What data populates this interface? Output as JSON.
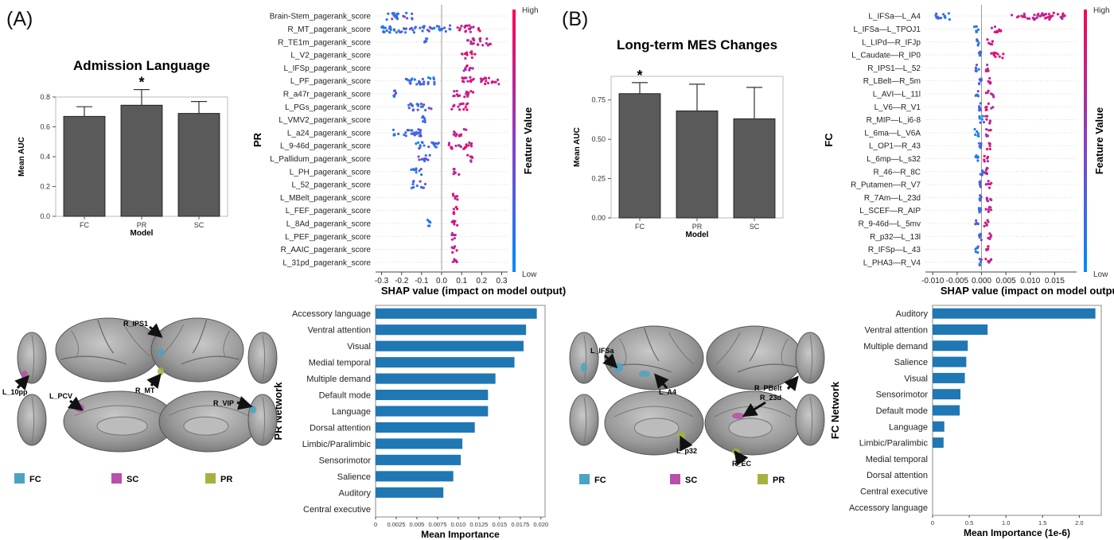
{
  "panels": [
    {
      "label": "(A)",
      "auc_chart": {
        "type": "bar",
        "title": "Admission Language",
        "ylabel": "Mean AUC",
        "xlabel": "Model",
        "categories": [
          "FC",
          "PR",
          "SC"
        ],
        "values": [
          0.67,
          0.745,
          0.69
        ],
        "errors": [
          0.065,
          0.105,
          0.08
        ],
        "significance": [
          "",
          "*",
          ""
        ],
        "ylim": [
          0,
          0.8
        ],
        "yticks": [
          "0.0",
          "0.2",
          "0.4",
          "0.6",
          "0.8"
        ],
        "bar_color": "#5a5a5a"
      },
      "shap_chart": {
        "type": "scatter",
        "ylabel": "PR",
        "xlabel": "SHAP value (impact on model output)",
        "colorbar": {
          "title": "Feature Value",
          "high": "High",
          "low": "Low"
        },
        "xlim": [
          -0.33,
          0.33
        ],
        "xticks": [
          "-0.3",
          "-0.2",
          "-0.1",
          "0.0",
          "0.1",
          "0.2",
          "0.3"
        ],
        "xtick_values": [
          -0.3,
          -0.2,
          -0.1,
          0,
          0.1,
          0.2,
          0.3
        ],
        "features": [
          {
            "name": "Brain-Stem_pagerank_score",
            "neg": [
              -0.28,
              -0.13
            ],
            "pos": []
          },
          {
            "name": "R_MT_pagerank_score",
            "neg": [
              -0.3,
              0.05
            ],
            "pos": [
              0.08,
              0.2
            ]
          },
          {
            "name": "R_TE1m_pagerank_score",
            "neg": [
              -0.09,
              -0.06
            ],
            "pos": [
              0.12,
              0.25
            ]
          },
          {
            "name": "L_V2_pagerank_score",
            "neg": [],
            "pos": [
              0.1,
              0.17
            ]
          },
          {
            "name": "L_IFSp_pagerank_score",
            "neg": [],
            "pos": [
              0.1,
              0.16
            ]
          },
          {
            "name": "L_PF_pagerank_score",
            "neg": [
              -0.2,
              -0.03
            ],
            "pos": [
              0.1,
              0.3
            ]
          },
          {
            "name": "R_a47r_pagerank_score",
            "neg": [
              -0.24,
              -0.22
            ],
            "pos": [
              0.05,
              0.16
            ]
          },
          {
            "name": "L_PGs_pagerank_score",
            "neg": [
              -0.17,
              -0.05
            ],
            "pos": [
              0.05,
              0.14
            ]
          },
          {
            "name": "L_VMV2_pagerank_score",
            "neg": [
              -0.1,
              -0.08
            ],
            "pos": []
          },
          {
            "name": "L_a24_pagerank_score",
            "neg": [
              -0.27,
              -0.1
            ],
            "pos": [
              0.06,
              0.13
            ]
          },
          {
            "name": "L_9-46d_pagerank_score",
            "neg": [
              -0.13,
              -0.01
            ],
            "pos": [
              0.03,
              0.16
            ]
          },
          {
            "name": "L_Pallidum_pagerank_score",
            "neg": [
              -0.12,
              -0.05
            ],
            "pos": [
              0.12,
              0.16
            ]
          },
          {
            "name": "L_PH_pagerank_score",
            "neg": [
              -0.16,
              -0.1
            ],
            "pos": [
              0.06,
              0.09
            ]
          },
          {
            "name": "L_52_pagerank_score",
            "neg": [
              -0.15,
              -0.08
            ],
            "pos": []
          },
          {
            "name": "L_MBelt_pagerank_score",
            "neg": [],
            "pos": [
              0.05,
              0.08
            ]
          },
          {
            "name": "L_FEF_pagerank_score",
            "neg": [],
            "pos": [
              0.05,
              0.08
            ]
          },
          {
            "name": "L_8Ad_pagerank_score",
            "neg": [
              -0.07,
              -0.05
            ],
            "pos": [
              0.05,
              0.08
            ]
          },
          {
            "name": "L_PEF_pagerank_score",
            "neg": [],
            "pos": [
              0.05,
              0.08
            ]
          },
          {
            "name": "R_AAIC_pagerank_score",
            "neg": [],
            "pos": [
              0.05,
              0.08
            ]
          },
          {
            "name": "L_31pd_pagerank_score",
            "neg": [],
            "pos": [
              0.05,
              0.08
            ]
          }
        ]
      },
      "importance_chart": {
        "type": "bar",
        "ylabel": "PR Network",
        "xlabel": "Mean Importance",
        "xlim": [
          0,
          0.0205
        ],
        "xticks": [
          "0",
          "0.0025",
          "0.005",
          "0.0075",
          "0.010",
          "0.0125",
          "0.015",
          "0.0175",
          "0.020"
        ],
        "xtick_values": [
          0,
          0.0025,
          0.005,
          0.0075,
          0.01,
          0.0125,
          0.015,
          0.0175,
          0.02
        ],
        "categories": [
          "Accessory language",
          "Ventral attention",
          "Visual",
          "Medial temporal",
          "Multiple demand",
          "Default mode",
          "Language",
          "Dorsal attention",
          "Limbic/Paralimbic",
          "Sensorimotor",
          "Salience",
          "Auditory",
          "Central executive"
        ],
        "values": [
          0.0195,
          0.0182,
          0.0179,
          0.0168,
          0.0145,
          0.0136,
          0.0136,
          0.012,
          0.0105,
          0.0103,
          0.0094,
          0.0082,
          0.0
        ],
        "bar_color": "#1f77b4"
      },
      "brain": {
        "labels": [
          "R_IPS1",
          "L_10pp",
          "L_PCV",
          "R_MT",
          "R_VIP"
        ],
        "legend": [
          {
            "label": "FC",
            "color": "#4ba3c3"
          },
          {
            "label": "SC",
            "color": "#b84fa8"
          },
          {
            "label": "PR",
            "color": "#a6b13f"
          }
        ]
      }
    },
    {
      "label": "(B)",
      "auc_chart": {
        "type": "bar",
        "title": "Long-term MES Changes",
        "ylabel": "Mean AUC",
        "xlabel": "Model",
        "categories": [
          "FC",
          "PR",
          "SC"
        ],
        "values": [
          0.79,
          0.68,
          0.63
        ],
        "errors": [
          0.07,
          0.17,
          0.2
        ],
        "significance": [
          "*",
          "",
          ""
        ],
        "ylim": [
          0,
          0.9
        ],
        "yticks": [
          "0.00",
          "0.25",
          "0.50",
          "0.75"
        ],
        "ytick_values": [
          0,
          0.25,
          0.5,
          0.75
        ],
        "bar_color": "#5a5a5a"
      },
      "shap_chart": {
        "type": "scatter",
        "ylabel": "FC",
        "xlabel": "SHAP value (impact on model output)",
        "colorbar": {
          "title": "Feature Value",
          "high": "High",
          "low": "Low"
        },
        "xlim": [
          -0.0115,
          0.0195
        ],
        "xticks": [
          "-0.010",
          "-0.005",
          "0.000",
          "0.005",
          "0.010",
          "0.015"
        ],
        "xtick_values": [
          -0.01,
          -0.005,
          0,
          0.005,
          0.01,
          0.015
        ],
        "features": [
          {
            "name": "L_IFSa—L_A4",
            "neg": [
              -0.0095,
              -0.006
            ],
            "pos": [
              0.006,
              0.018
            ]
          },
          {
            "name": "L_IFSa—L_TPOJ1",
            "neg": [
              -0.0015,
              -0.0005
            ],
            "pos": [
              0.0015,
              0.004
            ]
          },
          {
            "name": "L_LIPd—R_IFJp",
            "neg": [
              -0.001,
              -0.0005
            ],
            "pos": [
              0.001,
              0.0025
            ]
          },
          {
            "name": "L_Caudate—R_IP0",
            "neg": [
              -0.0005,
              0.0
            ],
            "pos": [
              0.002,
              0.005
            ]
          },
          {
            "name": "R_IPS1—L_52",
            "neg": [
              -0.0015,
              -0.0005
            ],
            "pos": [
              0.0008,
              0.0015
            ]
          },
          {
            "name": "R_LBelt—R_5m",
            "neg": [
              -0.0005,
              0.0
            ],
            "pos": [
              0.001,
              0.002
            ]
          },
          {
            "name": "L_AVI—L_11l",
            "neg": [
              -0.0015,
              -0.0005
            ],
            "pos": [
              0.0008,
              0.0025
            ]
          },
          {
            "name": "L_V6—R_V1",
            "neg": [
              -0.0005,
              0.0
            ],
            "pos": [
              0.0008,
              0.0025
            ]
          },
          {
            "name": "R_MIP—L_i6-8",
            "neg": [
              -0.0005,
              0.0005
            ],
            "pos": [
              0.0008,
              0.002
            ]
          },
          {
            "name": "L_6ma—L_V6A",
            "neg": [
              -0.0015,
              -0.0005
            ],
            "pos": [
              0.0008,
              0.002
            ]
          },
          {
            "name": "L_OP1—R_43",
            "neg": [
              -0.0005,
              0.0
            ],
            "pos": [
              0.0008,
              0.002
            ]
          },
          {
            "name": "L_6mp—L_s32",
            "neg": [
              -0.0015,
              -0.0005
            ],
            "pos": [
              0.0005,
              0.0015
            ]
          },
          {
            "name": "R_46—R_8C",
            "neg": [
              -0.0005,
              0.0005
            ],
            "pos": [
              0.0008,
              0.0015
            ]
          },
          {
            "name": "R_Putamen—R_V7",
            "neg": [
              -0.0005,
              0.0
            ],
            "pos": [
              0.0008,
              0.002
            ]
          },
          {
            "name": "R_7Am—L_23d",
            "neg": [
              -0.0005,
              0.0
            ],
            "pos": [
              0.0008,
              0.002
            ]
          },
          {
            "name": "L_SCEF—R_AIP",
            "neg": [
              -0.0005,
              0.0
            ],
            "pos": [
              0.0008,
              0.002
            ]
          },
          {
            "name": "R_9-46d—L_5mv",
            "neg": [
              -0.0015,
              -0.0005
            ],
            "pos": [
              0.0005,
              0.0015
            ]
          },
          {
            "name": "R_p32—L_13l",
            "neg": [
              -0.0005,
              0.0
            ],
            "pos": [
              0.0008,
              0.002
            ]
          },
          {
            "name": "R_IFSp—L_43",
            "neg": [
              -0.0015,
              -0.0005
            ],
            "pos": [
              0.0005,
              0.0015
            ]
          },
          {
            "name": "L_PHA3—R_V4",
            "neg": [
              -0.0005,
              0.0
            ],
            "pos": [
              0.0008,
              0.002
            ]
          }
        ]
      },
      "importance_chart": {
        "type": "bar",
        "ylabel": "FC Network",
        "xlabel": "Mean Importance (1e-6)",
        "xlim": [
          0,
          2.3
        ],
        "xticks": [
          "0",
          "0.5",
          "1.0",
          "1.5",
          "2.0"
        ],
        "xtick_values": [
          0,
          0.5,
          1.0,
          1.5,
          2.0
        ],
        "categories": [
          "Auditory",
          "Ventral attention",
          "Multiple demand",
          "Salience",
          "Visual",
          "Sensorimotor",
          "Default mode",
          "Language",
          "Limbic/Paralimbic",
          "Medial temporal",
          "Dorsal attention",
          "Central executive",
          "Accessory language"
        ],
        "values": [
          2.22,
          0.75,
          0.48,
          0.46,
          0.44,
          0.38,
          0.37,
          0.16,
          0.15,
          0.0,
          0.0,
          0.0,
          0.0
        ],
        "bar_color": "#1f77b4"
      },
      "brain": {
        "labels": [
          "L_IFSa",
          "L_A4",
          "R_PBelt",
          "R_23d",
          "L_p32",
          "R_EC"
        ],
        "legend": [
          {
            "label": "FC",
            "color": "#4ba3c3"
          },
          {
            "label": "SC",
            "color": "#b84fa8"
          },
          {
            "label": "PR",
            "color": "#a6b13f"
          }
        ]
      }
    }
  ]
}
